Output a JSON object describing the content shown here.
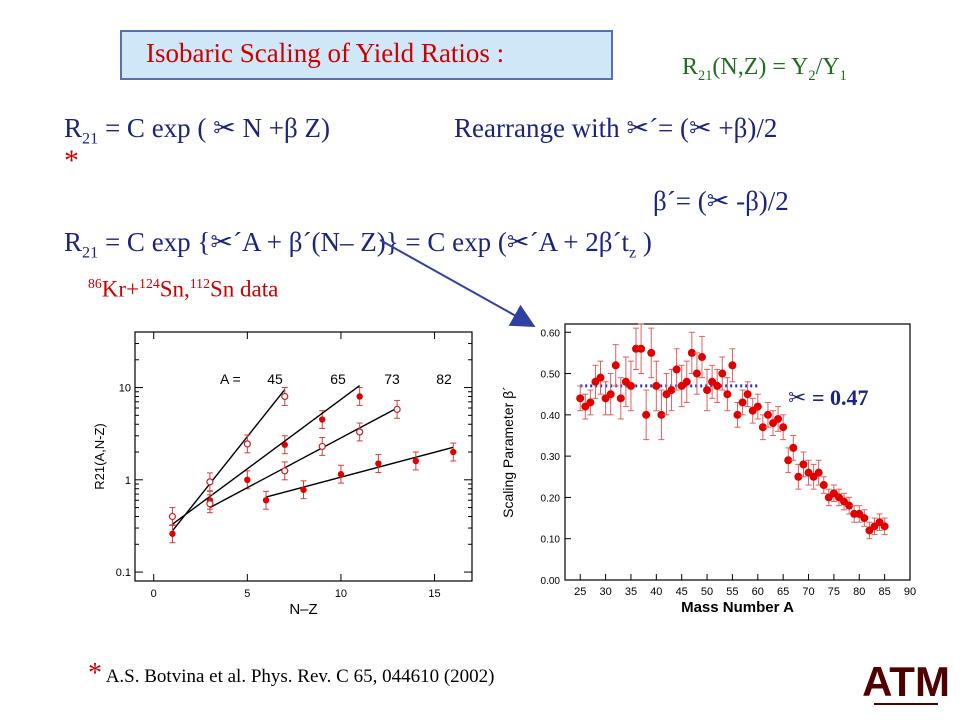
{
  "title": "Isobaric  Scaling of Yield Ratios :",
  "top_right_eq": {
    "R": "R",
    "sub21": "21",
    "rest1": "(N,Z) = Y",
    "sub2": "2",
    "slash": "/Y",
    "sub1": "1"
  },
  "eq1": {
    "R": "R",
    "sub": "21",
    "main": " = C exp ( ",
    "symA": "✂",
    "mid": " N +β Z)",
    "rearr": "Rearrange with ",
    "symB": "✂",
    "rearr2": "´= (",
    "symC": "✂",
    "rearr3": " +β)/2"
  },
  "star1": "*",
  "eq_beta": {
    "pre": "β´= (",
    "sym": "✂",
    "post": " -β)/2"
  },
  "eq2": {
    "R": "R",
    "sub": "21",
    "p1": " = C exp {",
    "sym1": "✂",
    "p2": "´A + β´(N– Z)}  =  C exp (",
    "sym2": "✂",
    "p3": "´A + 2β´t",
    "subz": "z",
    "p4": " )"
  },
  "data_label": {
    "sup86": "86",
    "kr": "Kr+",
    "sup124": "124",
    "sn": "Sn,",
    "sup112": "112",
    "sn2": "Sn data"
  },
  "alpha_label": {
    "sym": "✂",
    "text": " = 0.47"
  },
  "reference": {
    "star": "*",
    "text": " A.S. Botvina et al.  Phys. Rev. C 65,  044610 (2002)"
  },
  "logo": "ATM",
  "colors": {
    "accent_red": "#cc0000",
    "text_blue": "#1a237e",
    "title_bg": "#cfe7f7",
    "dotted_blue": "#3030c0",
    "arrow_blue": "#3040a0"
  },
  "chart_data": [
    {
      "type": "scatter",
      "xlabel": "N–Z",
      "ylabel": "R21(A,N-Z)",
      "xlim": [
        -1,
        17
      ],
      "ylim": [
        0.08,
        40
      ],
      "yscale": "log",
      "xticks": [
        "0",
        "5",
        "10",
        "15"
      ],
      "yticks": [
        "0.1",
        "1",
        "10"
      ],
      "legend_text": "A =",
      "mass_labels": [
        "45",
        "65",
        "73",
        "82"
      ],
      "series": [
        {
          "name": "45",
          "marker": "filled",
          "points": [
            [
              1,
              0.26
            ],
            [
              3,
              0.6
            ],
            [
              5,
              1.0
            ],
            [
              7,
              2.4
            ],
            [
              9,
              4.5
            ],
            [
              11,
              8.0
            ]
          ],
          "fit": [
            [
              1,
              0.28
            ],
            [
              7,
              9.5
            ]
          ]
        },
        {
          "name": "65",
          "marker": "open",
          "points": [
            [
              1,
              0.4
            ],
            [
              3,
              0.95
            ],
            [
              5,
              2.45
            ],
            [
              7,
              8.0
            ]
          ],
          "fit": [
            [
              1,
              0.33
            ],
            [
              11,
              10.5
            ]
          ]
        },
        {
          "name": "73",
          "marker": "open",
          "points": [
            [
              3,
              0.55
            ],
            [
              7,
              1.25
            ],
            [
              9,
              2.3
            ],
            [
              11,
              3.3
            ],
            [
              13,
              5.8
            ]
          ],
          "fit": [
            [
              3,
              0.5
            ],
            [
              13,
              6.0
            ]
          ]
        },
        {
          "name": "82",
          "marker": "filled",
          "points": [
            [
              6,
              0.6
            ],
            [
              8,
              0.78
            ],
            [
              10,
              1.15
            ],
            [
              12,
              1.5
            ],
            [
              14,
              1.6
            ],
            [
              16,
              2.0
            ]
          ],
          "fit": [
            [
              6,
              0.65
            ],
            [
              16,
              2.25
            ]
          ]
        }
      ]
    },
    {
      "type": "scatter",
      "xlabel": "Mass Number A",
      "ylabel": "Scaling Parameter β´",
      "xlim": [
        22,
        90
      ],
      "ylim": [
        0,
        0.62
      ],
      "xticks": [
        "25",
        "30",
        "35",
        "40",
        "45",
        "50",
        "55",
        "60",
        "65",
        "70",
        "75",
        "80",
        "85",
        "90"
      ],
      "yticks": [
        "0.00",
        "0.10",
        "0.20",
        "0.30",
        "0.40",
        "0.50",
        "0.60"
      ],
      "reference_line": {
        "value": 0.47,
        "from": 25,
        "to": 60
      },
      "points": [
        [
          25,
          0.44,
          0.03
        ],
        [
          26,
          0.42,
          0.03
        ],
        [
          27,
          0.43,
          0.03
        ],
        [
          28,
          0.48,
          0.04
        ],
        [
          29,
          0.49,
          0.04
        ],
        [
          30,
          0.44,
          0.04
        ],
        [
          31,
          0.45,
          0.05
        ],
        [
          32,
          0.52,
          0.05
        ],
        [
          33,
          0.44,
          0.05
        ],
        [
          34,
          0.48,
          0.06
        ],
        [
          35,
          0.47,
          0.06
        ],
        [
          36,
          0.56,
          0.05
        ],
        [
          37,
          0.56,
          0.06
        ],
        [
          38,
          0.4,
          0.06
        ],
        [
          39,
          0.55,
          0.06
        ],
        [
          40,
          0.47,
          0.06
        ],
        [
          41,
          0.4,
          0.06
        ],
        [
          42,
          0.45,
          0.05
        ],
        [
          43,
          0.46,
          0.05
        ],
        [
          44,
          0.51,
          0.05
        ],
        [
          45,
          0.47,
          0.05
        ],
        [
          46,
          0.48,
          0.05
        ],
        [
          47,
          0.55,
          0.05
        ],
        [
          48,
          0.5,
          0.05
        ],
        [
          49,
          0.54,
          0.05
        ],
        [
          50,
          0.46,
          0.05
        ],
        [
          51,
          0.48,
          0.04
        ],
        [
          52,
          0.47,
          0.04
        ],
        [
          53,
          0.5,
          0.04
        ],
        [
          54,
          0.45,
          0.04
        ],
        [
          55,
          0.52,
          0.04
        ],
        [
          56,
          0.4,
          0.03
        ],
        [
          57,
          0.43,
          0.03
        ],
        [
          58,
          0.45,
          0.03
        ],
        [
          59,
          0.41,
          0.03
        ],
        [
          60,
          0.42,
          0.03
        ],
        [
          61,
          0.37,
          0.03
        ],
        [
          62,
          0.4,
          0.03
        ],
        [
          63,
          0.38,
          0.03
        ],
        [
          64,
          0.39,
          0.03
        ],
        [
          65,
          0.37,
          0.03
        ],
        [
          66,
          0.29,
          0.03
        ],
        [
          67,
          0.32,
          0.03
        ],
        [
          68,
          0.25,
          0.03
        ],
        [
          69,
          0.28,
          0.03
        ],
        [
          70,
          0.26,
          0.03
        ],
        [
          71,
          0.25,
          0.03
        ],
        [
          72,
          0.26,
          0.03
        ],
        [
          73,
          0.23,
          0.02
        ],
        [
          74,
          0.2,
          0.02
        ],
        [
          75,
          0.21,
          0.02
        ],
        [
          76,
          0.2,
          0.02
        ],
        [
          77,
          0.19,
          0.02
        ],
        [
          78,
          0.18,
          0.02
        ],
        [
          79,
          0.16,
          0.02
        ],
        [
          80,
          0.16,
          0.02
        ],
        [
          81,
          0.15,
          0.02
        ],
        [
          82,
          0.12,
          0.02
        ],
        [
          83,
          0.13,
          0.02
        ],
        [
          84,
          0.14,
          0.02
        ],
        [
          85,
          0.13,
          0.02
        ]
      ]
    }
  ]
}
